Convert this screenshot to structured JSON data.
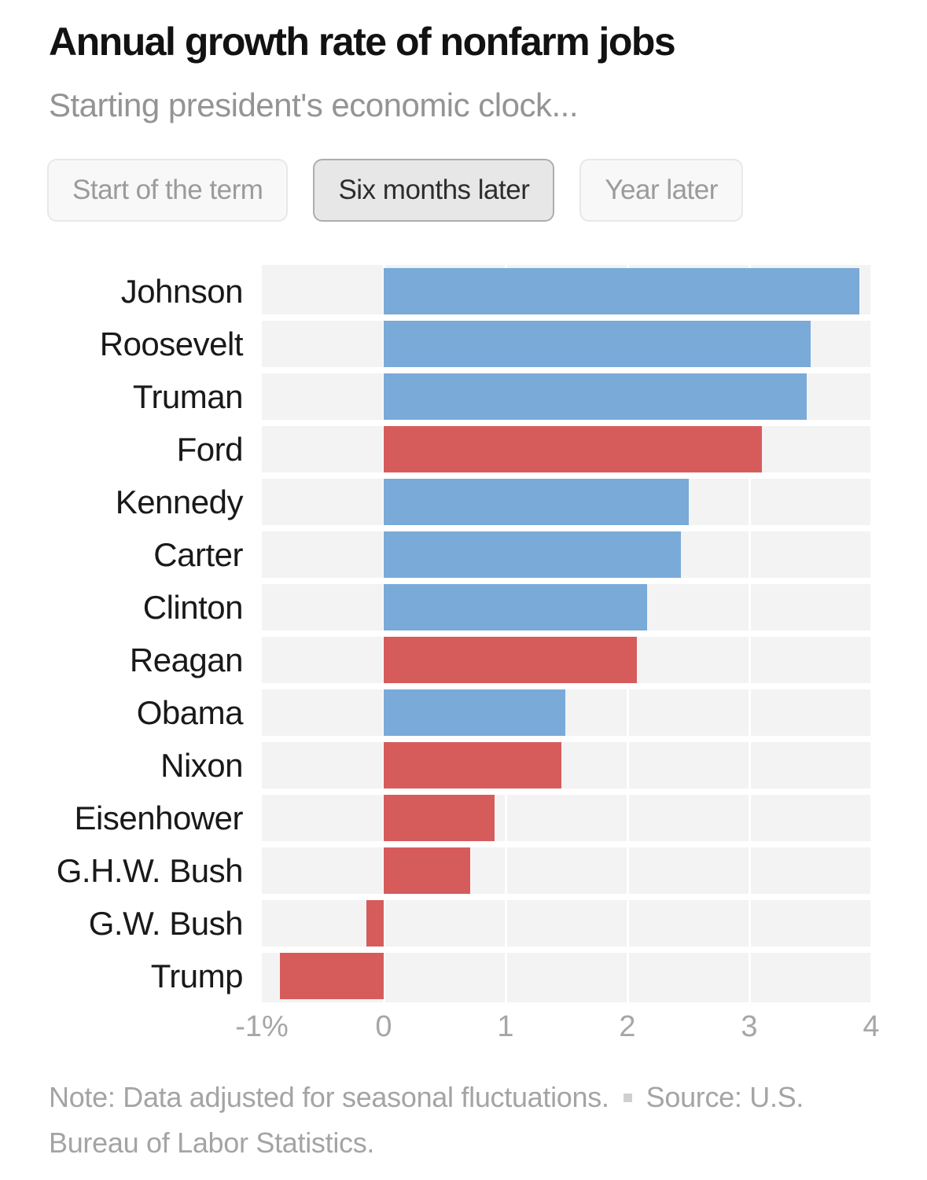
{
  "header": {
    "title": "Annual growth rate of nonfarm jobs",
    "subtitle": "Starting president's economic clock..."
  },
  "toggle": {
    "options": [
      {
        "label": "Start of the term",
        "selected": false
      },
      {
        "label": "Six months later",
        "selected": true
      },
      {
        "label": "Year later",
        "selected": false
      }
    ]
  },
  "chart_data": {
    "type": "bar",
    "orientation": "horizontal",
    "value_unit": "percent",
    "categories": [
      "Johnson",
      "Roosevelt",
      "Truman",
      "Ford",
      "Kennedy",
      "Carter",
      "Clinton",
      "Reagan",
      "Obama",
      "Nixon",
      "Eisenhower",
      "G.H.W. Bush",
      "G.W. Bush",
      "Trump"
    ],
    "values": [
      3.9,
      3.5,
      3.47,
      3.1,
      2.5,
      2.44,
      2.16,
      2.08,
      1.49,
      1.46,
      0.91,
      0.71,
      -0.14,
      -0.85
    ],
    "bar_parties": [
      "blue",
      "blue",
      "blue",
      "red",
      "blue",
      "blue",
      "blue",
      "red",
      "blue",
      "red",
      "red",
      "red",
      "red",
      "red"
    ],
    "palette": {
      "blue": "#7aaad8",
      "red": "#d65c5c"
    },
    "xlim": [
      -1,
      4
    ],
    "xticks": [
      {
        "value": -1,
        "label": "-1%"
      },
      {
        "value": 0,
        "label": "0"
      },
      {
        "value": 1,
        "label": "1"
      },
      {
        "value": 2,
        "label": "2"
      },
      {
        "value": 3,
        "label": "3"
      },
      {
        "value": 4,
        "label": "4"
      }
    ],
    "plot_background": "#f3f3f4",
    "gridline_color": "#ffffff",
    "grid": true,
    "legend": false
  },
  "footer": {
    "note": "Note: Data adjusted for seasonal fluctuations.",
    "source": "Source: U.S. Bureau of Labor Statistics."
  }
}
